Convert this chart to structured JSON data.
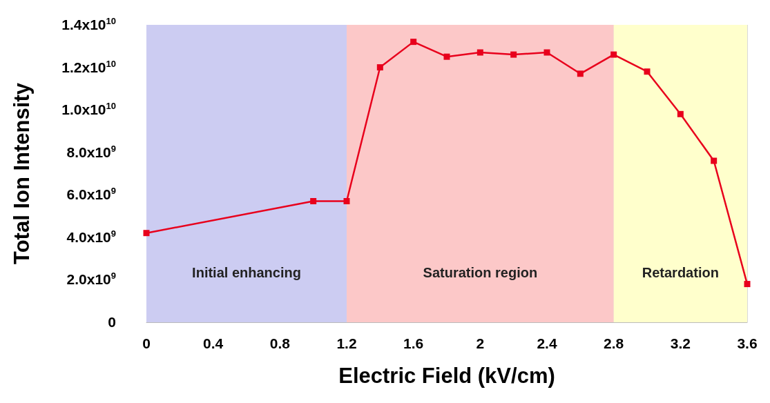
{
  "chart_data": {
    "type": "line",
    "xlabel": "Electric Field (kV/cm)",
    "ylabel": "Total Ion Intensity",
    "x": [
      0,
      1.0,
      1.2,
      1.4,
      1.6,
      1.8,
      2.0,
      2.2,
      2.4,
      2.6,
      2.8,
      3.0,
      3.2,
      3.4,
      3.6
    ],
    "series": [
      {
        "color": "#e8001c",
        "values": [
          4200000000.0,
          5700000000.0,
          5700000000.0,
          12000000000.0,
          13200000000.0,
          12500000000.0,
          12700000000.0,
          12600000000.0,
          12700000000.0,
          11700000000.0,
          12600000000.0,
          11800000000.0,
          9800000000.0,
          7600000000.0,
          1800000000.0
        ]
      }
    ],
    "xlim": [
      0,
      3.6
    ],
    "xticks": [
      0,
      0.4,
      0.8,
      1.2,
      1.6,
      2,
      2.4,
      2.8,
      3.2,
      3.6
    ],
    "ylim": [
      0,
      14000000000.0
    ],
    "yticks": [
      {
        "value": 0,
        "label": "0"
      },
      {
        "value": 2000000000.0,
        "label": "2.0x10$^{9}$"
      },
      {
        "value": 4000000000.0,
        "label": "4.0x10$^{9}$"
      },
      {
        "value": 6000000000.0,
        "label": "6.0x10$^{9}$"
      },
      {
        "value": 8000000000.0,
        "label": "8.0x10$^{9}$"
      },
      {
        "value": 10000000000.0,
        "label": "1.0x10$^{10}$"
      },
      {
        "value": 12000000000.0,
        "label": "1.2x10$^{10}$"
      },
      {
        "value": 14000000000.0,
        "label": "1.4x10$^{10}$"
      }
    ],
    "bands": [
      {
        "axis": "x",
        "from": 0,
        "to": 1.2,
        "label": "Initial enhancing",
        "color": "#ccccf2"
      },
      {
        "axis": "x",
        "from": 1.2,
        "to": 2.8,
        "label": "Saturation region",
        "color": "#fcc8c8"
      },
      {
        "axis": "x",
        "from": 2.8,
        "to": 3.6,
        "label": "Retardation",
        "color": "#ffffcc"
      }
    ],
    "grid": "x",
    "marker": "square",
    "line_style": "solid"
  }
}
